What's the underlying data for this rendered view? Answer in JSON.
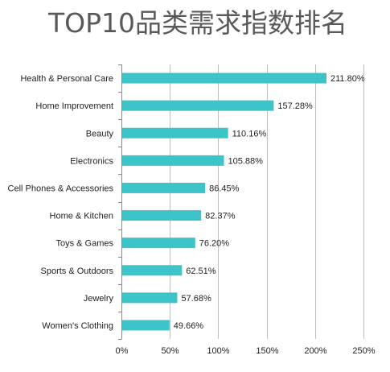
{
  "chart_data": {
    "type": "bar",
    "orientation": "horizontal",
    "title": "TOP10品类需求指数排名",
    "categories": [
      "Health & Personal Care",
      "Home Improvement",
      "Beauty",
      "Electronics",
      "Cell Phones & Accessories",
      "Home & Kitchen",
      "Toys & Games",
      "Sports & Outdoors",
      "Jewelry",
      "Women's Clothing"
    ],
    "values": [
      211.8,
      157.28,
      110.16,
      105.88,
      86.45,
      82.37,
      76.2,
      62.51,
      57.68,
      49.66
    ],
    "value_labels": [
      "211.80%",
      "157.28%",
      "110.16%",
      "105.88%",
      "86.45%",
      "82.37%",
      "76.20%",
      "62.51%",
      "57.68%",
      "49.66%"
    ],
    "xticks": [
      0,
      50,
      100,
      150,
      200,
      250
    ],
    "xtick_labels": [
      "0%",
      "50%",
      "100%",
      "150%",
      "200%",
      "250%"
    ],
    "xlim": [
      0,
      250
    ],
    "xlabel": "",
    "ylabel": "",
    "grid": "vertical",
    "legend": "none",
    "bar_color": "#3cc4c9"
  }
}
